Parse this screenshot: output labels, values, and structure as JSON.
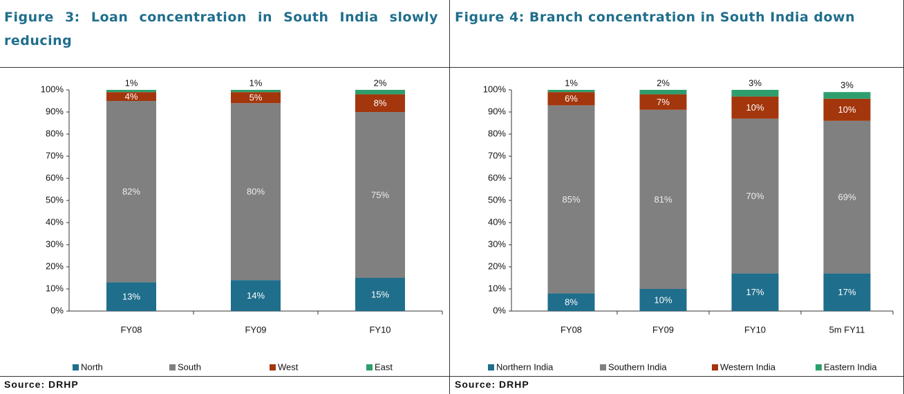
{
  "chart_data": [
    {
      "type": "stacked_bar",
      "title": "Figure 3: Loan concentration in South India slowly reducing",
      "categories": [
        "FY08",
        "FY09",
        "FY10"
      ],
      "series": [
        {
          "name": "North",
          "color": "#1f6e8c",
          "values": [
            13,
            14,
            15
          ],
          "value_labels": [
            "13%",
            "14%",
            "15%"
          ]
        },
        {
          "name": "South",
          "color": "#808080",
          "values": [
            82,
            80,
            75
          ],
          "value_labels": [
            "82%",
            "80%",
            "75%"
          ]
        },
        {
          "name": "West",
          "color": "#a3360c",
          "values": [
            4,
            5,
            8
          ],
          "value_labels": [
            "4%",
            "5%",
            "8%"
          ]
        },
        {
          "name": "East",
          "color": "#2e9e6e",
          "values": [
            1,
            1,
            2
          ],
          "value_labels": [
            "1%",
            "1%",
            "2%"
          ]
        }
      ],
      "ylim": [
        0,
        100
      ],
      "yticks": [
        {
          "value": 0,
          "label": "0%"
        },
        {
          "value": 10,
          "label": "10%"
        },
        {
          "value": 20,
          "label": "20%"
        },
        {
          "value": 30,
          "label": "30%"
        },
        {
          "value": 40,
          "label": "40%"
        },
        {
          "value": 50,
          "label": "50%"
        },
        {
          "value": 60,
          "label": "60%"
        },
        {
          "value": 70,
          "label": "70%"
        },
        {
          "value": 80,
          "label": "80%"
        },
        {
          "value": 90,
          "label": "90%"
        },
        {
          "value": 100,
          "label": "100%"
        }
      ],
      "source": "Source: DRHP"
    },
    {
      "type": "stacked_bar",
      "title": "Figure 4: Branch concentration in South India down",
      "categories": [
        "FY08",
        "FY09",
        "FY10",
        "5m FY11"
      ],
      "series": [
        {
          "name": "Northern India",
          "color": "#1f6e8c",
          "values": [
            8,
            10,
            17,
            17
          ],
          "value_labels": [
            "8%",
            "10%",
            "17%",
            "17%"
          ]
        },
        {
          "name": "Southern India",
          "color": "#808080",
          "values": [
            85,
            81,
            70,
            69
          ],
          "value_labels": [
            "85%",
            "81%",
            "70%",
            "69%"
          ]
        },
        {
          "name": "Western India",
          "color": "#a3360c",
          "values": [
            6,
            7,
            10,
            10
          ],
          "value_labels": [
            "6%",
            "7%",
            "10%",
            "10%"
          ]
        },
        {
          "name": "Eastern India",
          "color": "#2e9e6e",
          "values": [
            1,
            2,
            3,
            3
          ],
          "value_labels": [
            "1%",
            "2%",
            "3%",
            "3%"
          ]
        }
      ],
      "ylim": [
        0,
        100
      ],
      "yticks": [
        {
          "value": 0,
          "label": "0%"
        },
        {
          "value": 10,
          "label": "10%"
        },
        {
          "value": 20,
          "label": "20%"
        },
        {
          "value": 30,
          "label": "30%"
        },
        {
          "value": 40,
          "label": "40%"
        },
        {
          "value": 50,
          "label": "50%"
        },
        {
          "value": 60,
          "label": "60%"
        },
        {
          "value": 70,
          "label": "70%"
        },
        {
          "value": 80,
          "label": "80%"
        },
        {
          "value": 90,
          "label": "90%"
        },
        {
          "value": 100,
          "label": "100%"
        }
      ],
      "source": "Source: DRHP"
    }
  ]
}
